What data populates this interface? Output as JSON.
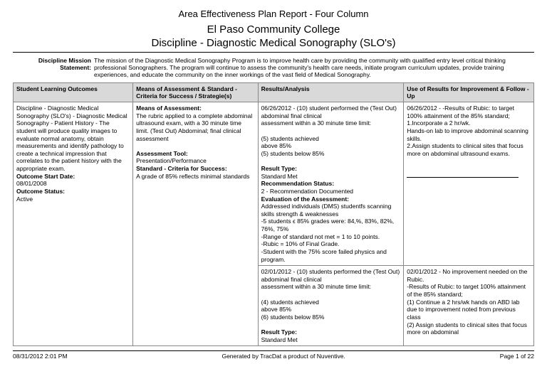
{
  "header": {
    "report_title": "Area Effectiveness Plan Report - Four Column",
    "college": "El Paso Community College",
    "discipline": "Discipline - Diagnostic Medical Sonography (SLO's)"
  },
  "mission": {
    "label": "Discipline Mission Statement:",
    "text": "The mission of the Diagnostic Medical Sonography Program is to improve health care by providing the community with qualified entry level critical thinking professional Sonographers.  The program will continue to assess the community's health care needs, initiate program curriculum updates, provide training experiences, and educate the community on the inner workings of the vast field of Medical Sonography."
  },
  "columns": {
    "c1": "Student Learning Outcomes",
    "c2": "Means of Assessment & Standard - Criteria for Success / Strategie(s)",
    "c3": "Results/Analysis",
    "c4": "Use of Results for Improvement & Follow -Up"
  },
  "row1": {
    "slo_text": "Discipline - Diagnostic Medical Sonography (SLO's) - Diagnostic Medical Sonography - Patient History - The student will produce quality images to evaluate normal anatomy, obtain measurements and identify pathology to create a technical impression that correlates to the patient history with the appropriate exam.",
    "start_label": "Outcome Start Date:",
    "start_date": "08/01/2008",
    "status_label": "Outcome Status:",
    "status": "Active",
    "means_label": "Means of Assessment:",
    "means_text": "The rubric applied to a complete abdominal ultrasound exam, with a 30 minute time limit. (Test Out) Abdominal; final clinical assessment",
    "tool_label": "Assessment Tool:",
    "tool_text": "Presentation/Performance",
    "std_label": "Standard - Criteria for Success:",
    "std_text": "A grade of 85% reflects minimal standards"
  },
  "results1": {
    "line1": "06/26/2012 - (10) student performed the (Test Out) abdominal final clinical",
    "line2": "assessment within a 30 minute time limit:",
    "line3": "(5) students achieved",
    "line4": "above 85%",
    "line5": "(5) students below 85%",
    "rt_label": "Result Type:",
    "rt_val": "Standard Met",
    "rec_label": "Recommendation Status:",
    "rec_val": "2 - Recommendation Documented",
    "eval_label": "Evaluation of the Assessment:",
    "eval1": "Addressed individuals (DMS) studentfs scanning skills strength & weaknesses",
    "eval2": "-5 students ϵ 85% grades were: 84,%, 83%, 82%, 76%, 75%",
    "eval3": "-Range of standard not met = 1 to 10 points.",
    "eval4": "-Rubic = 10% of Final Grade.",
    "eval5": "-Student with the 75% score failed physics and program."
  },
  "use1": {
    "line1": "06/26/2012 - -Results of Rubic: to target 100% attainment of the 85% standard;",
    "line2": "1.Incorporate a 2 hr/wk.",
    "line3": "Hands-on lab to improve abdominal scanning skills.",
    "line4": "2.Assign students to clinical sites that focus more on abdominal ultrasound exams."
  },
  "results2": {
    "line1": "02/01/2012 - (10) students performed the (Test Out) abdominal final clinical",
    "line2": "assessment within a 30 minute time limit:",
    "line3": "(4) students achieved",
    "line4": "above 85%",
    "line5": "(6) students below 85%",
    "rt_label": "Result Type:",
    "rt_val": "Standard Met"
  },
  "use2": {
    "line1": "02/01/2012 - No improvement needed on the Rubic.",
    "line2": "-Results of Rubic: to target 100% attainment of the 85% standard;",
    "line3": "(1) Continue a 2 hrs/wk hands on ABD lab due to improvement noted from previous class",
    "line4": "(2)  Assign students to clinical sites that focus more on abdominal"
  },
  "footer": {
    "left": "08/31/2012 2:01 PM",
    "center": "Generated by TracDat a product of Nuventive.",
    "right": "Page 1 of  22"
  }
}
